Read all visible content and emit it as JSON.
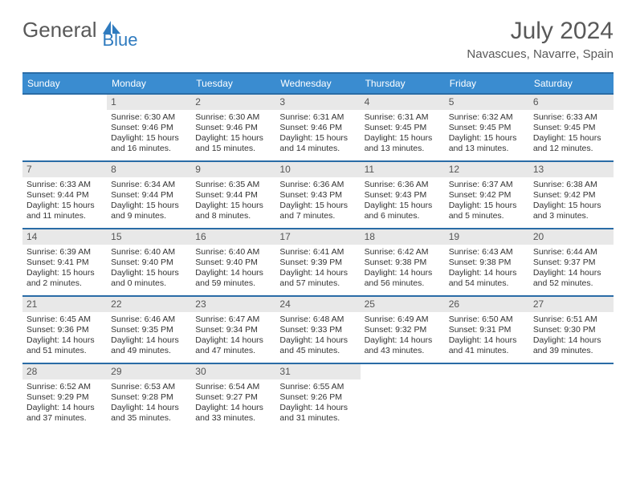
{
  "logo": {
    "text1": "General",
    "text2": "Blue"
  },
  "title": "July 2024",
  "location": "Navascues, Navarre, Spain",
  "colors": {
    "header_bg": "#3a8cd0",
    "header_border": "#2a6ca6",
    "daynum_bg": "#e8e8e8",
    "text": "#595959",
    "white": "#ffffff"
  },
  "day_names": [
    "Sunday",
    "Monday",
    "Tuesday",
    "Wednesday",
    "Thursday",
    "Friday",
    "Saturday"
  ],
  "weeks": [
    [
      null,
      {
        "n": "1",
        "sr": "6:30 AM",
        "ss": "9:46 PM",
        "dh": "15",
        "dm": "16"
      },
      {
        "n": "2",
        "sr": "6:30 AM",
        "ss": "9:46 PM",
        "dh": "15",
        "dm": "15"
      },
      {
        "n": "3",
        "sr": "6:31 AM",
        "ss": "9:46 PM",
        "dh": "15",
        "dm": "14"
      },
      {
        "n": "4",
        "sr": "6:31 AM",
        "ss": "9:45 PM",
        "dh": "15",
        "dm": "13"
      },
      {
        "n": "5",
        "sr": "6:32 AM",
        "ss": "9:45 PM",
        "dh": "15",
        "dm": "13"
      },
      {
        "n": "6",
        "sr": "6:33 AM",
        "ss": "9:45 PM",
        "dh": "15",
        "dm": "12"
      }
    ],
    [
      {
        "n": "7",
        "sr": "6:33 AM",
        "ss": "9:44 PM",
        "dh": "15",
        "dm": "11"
      },
      {
        "n": "8",
        "sr": "6:34 AM",
        "ss": "9:44 PM",
        "dh": "15",
        "dm": "9"
      },
      {
        "n": "9",
        "sr": "6:35 AM",
        "ss": "9:44 PM",
        "dh": "15",
        "dm": "8"
      },
      {
        "n": "10",
        "sr": "6:36 AM",
        "ss": "9:43 PM",
        "dh": "15",
        "dm": "7"
      },
      {
        "n": "11",
        "sr": "6:36 AM",
        "ss": "9:43 PM",
        "dh": "15",
        "dm": "6"
      },
      {
        "n": "12",
        "sr": "6:37 AM",
        "ss": "9:42 PM",
        "dh": "15",
        "dm": "5"
      },
      {
        "n": "13",
        "sr": "6:38 AM",
        "ss": "9:42 PM",
        "dh": "15",
        "dm": "3"
      }
    ],
    [
      {
        "n": "14",
        "sr": "6:39 AM",
        "ss": "9:41 PM",
        "dh": "15",
        "dm": "2"
      },
      {
        "n": "15",
        "sr": "6:40 AM",
        "ss": "9:40 PM",
        "dh": "15",
        "dm": "0"
      },
      {
        "n": "16",
        "sr": "6:40 AM",
        "ss": "9:40 PM",
        "dh": "14",
        "dm": "59"
      },
      {
        "n": "17",
        "sr": "6:41 AM",
        "ss": "9:39 PM",
        "dh": "14",
        "dm": "57"
      },
      {
        "n": "18",
        "sr": "6:42 AM",
        "ss": "9:38 PM",
        "dh": "14",
        "dm": "56"
      },
      {
        "n": "19",
        "sr": "6:43 AM",
        "ss": "9:38 PM",
        "dh": "14",
        "dm": "54"
      },
      {
        "n": "20",
        "sr": "6:44 AM",
        "ss": "9:37 PM",
        "dh": "14",
        "dm": "52"
      }
    ],
    [
      {
        "n": "21",
        "sr": "6:45 AM",
        "ss": "9:36 PM",
        "dh": "14",
        "dm": "51"
      },
      {
        "n": "22",
        "sr": "6:46 AM",
        "ss": "9:35 PM",
        "dh": "14",
        "dm": "49"
      },
      {
        "n": "23",
        "sr": "6:47 AM",
        "ss": "9:34 PM",
        "dh": "14",
        "dm": "47"
      },
      {
        "n": "24",
        "sr": "6:48 AM",
        "ss": "9:33 PM",
        "dh": "14",
        "dm": "45"
      },
      {
        "n": "25",
        "sr": "6:49 AM",
        "ss": "9:32 PM",
        "dh": "14",
        "dm": "43"
      },
      {
        "n": "26",
        "sr": "6:50 AM",
        "ss": "9:31 PM",
        "dh": "14",
        "dm": "41"
      },
      {
        "n": "27",
        "sr": "6:51 AM",
        "ss": "9:30 PM",
        "dh": "14",
        "dm": "39"
      }
    ],
    [
      {
        "n": "28",
        "sr": "6:52 AM",
        "ss": "9:29 PM",
        "dh": "14",
        "dm": "37"
      },
      {
        "n": "29",
        "sr": "6:53 AM",
        "ss": "9:28 PM",
        "dh": "14",
        "dm": "35"
      },
      {
        "n": "30",
        "sr": "6:54 AM",
        "ss": "9:27 PM",
        "dh": "14",
        "dm": "33"
      },
      {
        "n": "31",
        "sr": "6:55 AM",
        "ss": "9:26 PM",
        "dh": "14",
        "dm": "31"
      },
      null,
      null,
      null
    ]
  ],
  "labels": {
    "sunrise": "Sunrise: ",
    "sunset": "Sunset: ",
    "daylight_pre": "Daylight: ",
    "hours": " hours",
    "and": "and ",
    "minutes": " minutes."
  }
}
